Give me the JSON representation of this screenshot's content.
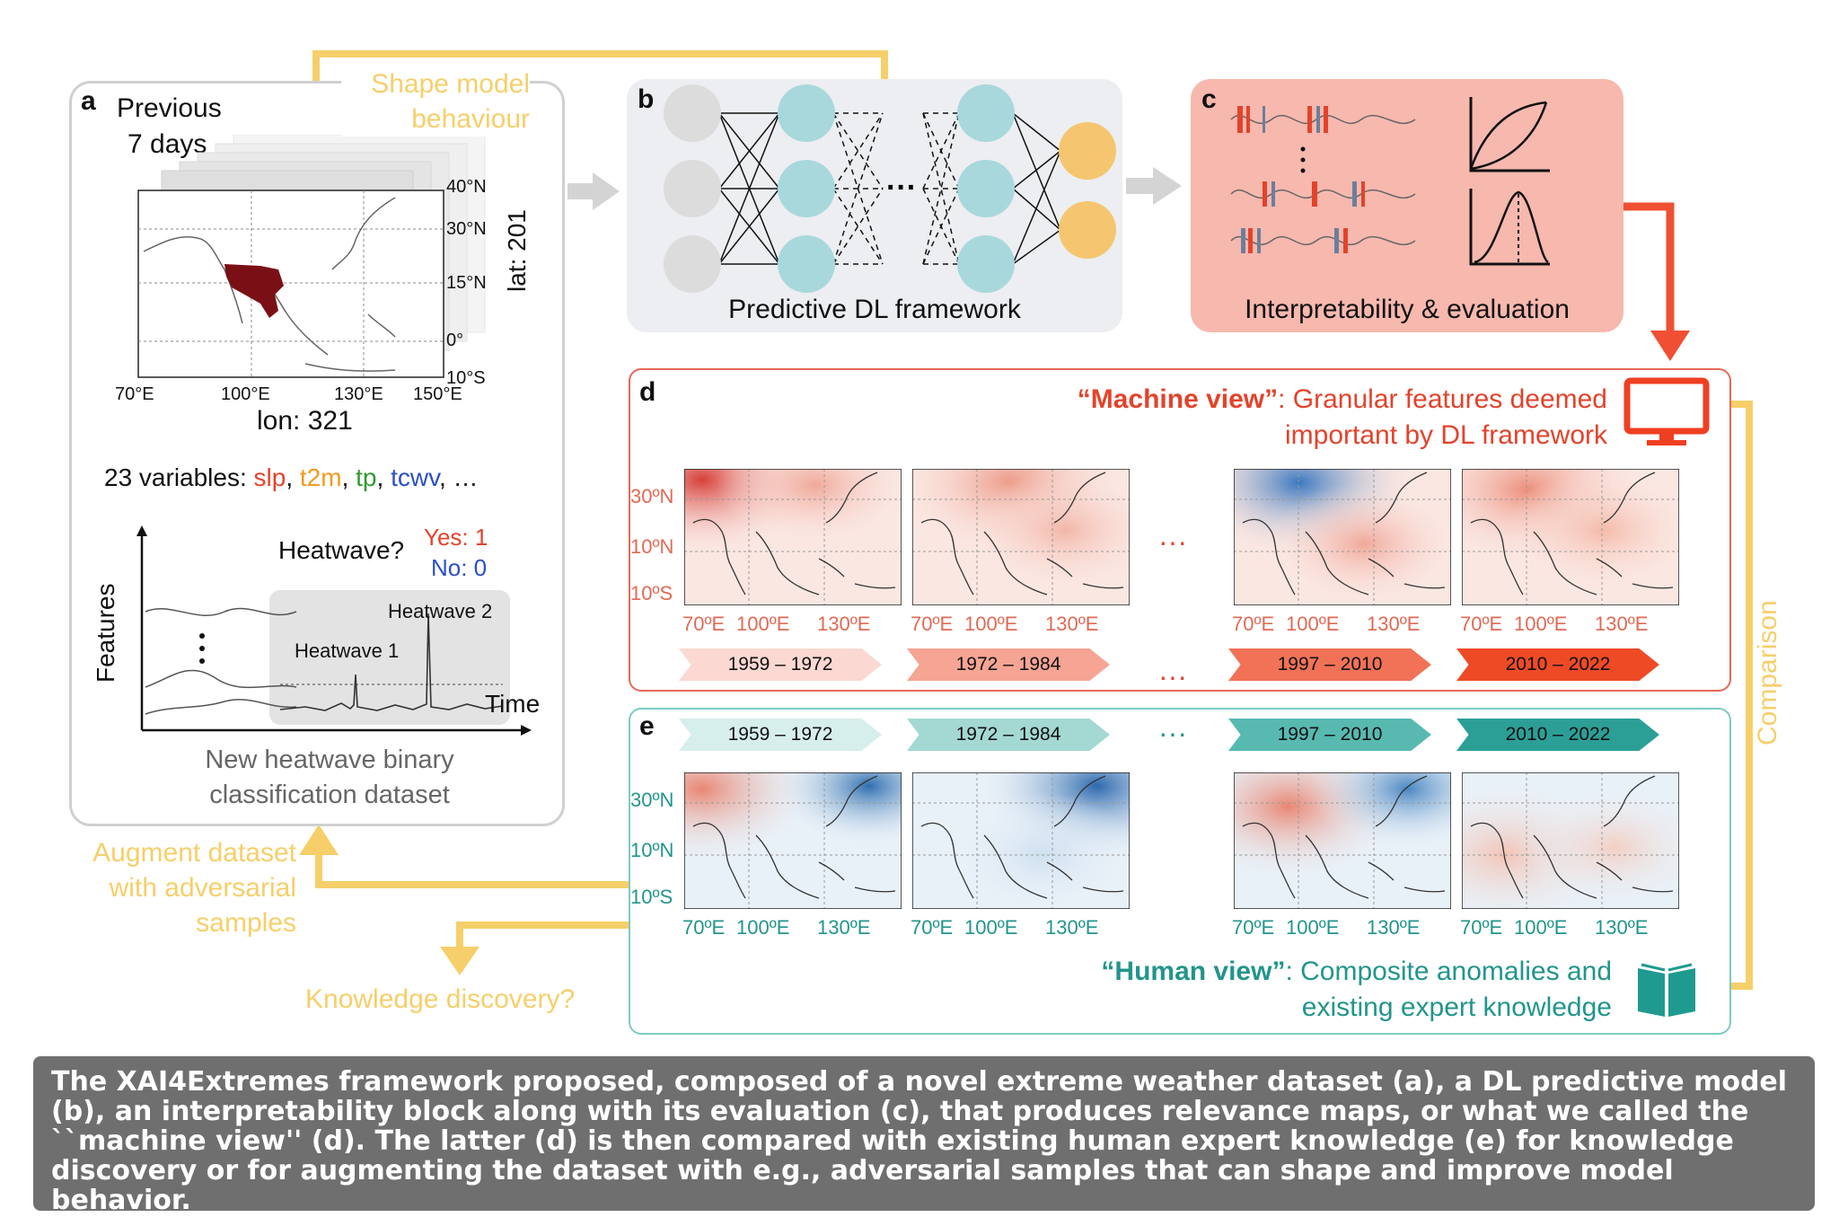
{
  "colors": {
    "yellow": "#f6cf6a",
    "red": "#e3432b",
    "teal": "#22958c",
    "panel_b_bg": "#eceef1",
    "panel_c_bg": "#f7b8ae",
    "node_grey": "#dcdcdc",
    "node_teal": "#a9d8dc",
    "node_orange": "#f5c66f",
    "region_dark_red": "#7a1016",
    "caption_bg": "#6f6f6f"
  },
  "icons": {
    "machine_view": "monitor-icon",
    "human_view": "open-book-icon",
    "evaluation": "curve-chart-icon"
  },
  "panel_a": {
    "letter": "a",
    "previous": "Previous",
    "days": "7 days",
    "lat_ticks": [
      "40°N",
      "30°N",
      "15°N",
      "0°",
      "10°S"
    ],
    "lon_ticks": [
      "70°E",
      "100°E",
      "130°E",
      "150°E"
    ],
    "lat_label": "lat: 201",
    "lon_label": "lon: 321",
    "vars_prefix": "23 variables: ",
    "vars": [
      {
        "name": "slp",
        "color": "#e3432b"
      },
      {
        "name": "t2m",
        "color": "#f29a1f"
      },
      {
        "name": "tp",
        "color": "#2f9a2f"
      },
      {
        "name": "tcwv",
        "color": "#2a4fc8"
      }
    ],
    "vars_ellipsis": ", …",
    "heatwave_q": "Heatwave?",
    "yes": "Yes: 1",
    "no": "No: 0",
    "features": "Features",
    "time": "Time",
    "hw1": "Heatwave 1",
    "hw2": "Heatwave 2",
    "dataset_line1": "New heatwave binary",
    "dataset_line2": "classification dataset"
  },
  "shape_line1": "Shape model",
  "shape_line2": "behaviour",
  "panel_b": {
    "letter": "b",
    "label": "Predictive DL framework"
  },
  "panel_c": {
    "letter": "c",
    "label": "Interpretability & evaluation"
  },
  "panel_d": {
    "letter": "d",
    "view_quote": "“Machine view”",
    "view_rest": ": Granular features deemed",
    "view_line2": "important by DL framework",
    "lat_ticks": [
      "30ºN",
      "10ºN",
      "10ºS"
    ],
    "lon_ticks": [
      "70ºE",
      "100ºE",
      "130ºE"
    ],
    "periods": [
      "1959 – 1972",
      "1972 – 1984",
      "1997 – 2010",
      "2010 – 2022"
    ],
    "ellipsis": "···"
  },
  "panel_e": {
    "letter": "e",
    "view_quote": "“Human view”",
    "view_rest": ": Composite anomalies and",
    "view_line2": "existing expert knowledge",
    "lat_ticks": [
      "30ºN",
      "10ºN",
      "10ºS"
    ],
    "lon_ticks": [
      "70ºE",
      "100ºE",
      "130ºE"
    ],
    "periods": [
      "1959 – 1972",
      "1972 – 1984",
      "1997 – 2010",
      "2010 – 2022"
    ],
    "ellipsis": "···"
  },
  "comparison": "Comparison",
  "augment_line1": "Augment dataset",
  "augment_line2": "with adversarial",
  "augment_line3": "samples",
  "discovery": "Knowledge discovery?",
  "caption": "The XAI4Extremes framework proposed, composed of a novel extreme weather dataset (a), a DL predictive model (b), an interpretability block along with its evaluation (c), that produces relevance maps, or what we called the ``machine view'' (d). The latter (d) is then compared with existing human expert knowledge (e) for knowledge discovery or for augmenting the dataset with e.g., adversarial samples that can shape and improve model behavior."
}
